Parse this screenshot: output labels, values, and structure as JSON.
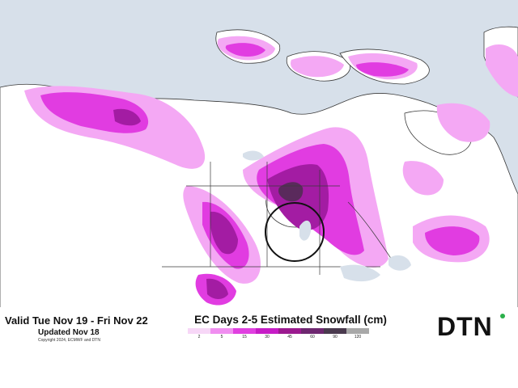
{
  "header": {
    "valid": "Valid Tue Nov 19 - Fri Nov 22",
    "updated": "Updated Nov 18",
    "copyright": "Copyright 2024, ECMWF and DTN",
    "title": "EC Days 2-5 Estimated Snowfall (cm)"
  },
  "legend": {
    "ticks": [
      "2",
      "5",
      "15",
      "30",
      "45",
      "60",
      "90",
      "120"
    ],
    "colors": [
      "#f7d7f7",
      "#f08ef0",
      "#e040e0",
      "#c61cc6",
      "#9b1a8f",
      "#6e2770",
      "#4a3a4e",
      "#a8a8a8"
    ]
  },
  "brand": {
    "logo": "DTN",
    "accent": "#2bb04a"
  },
  "map": {
    "ocean": "#d7e0ea",
    "land": "#ffffff",
    "border": "#3a3a3a",
    "snow_light": "#f4a8f4",
    "snow_mid": "#e13ce1",
    "snow_heavy": "#a31ca3",
    "snow_max": "#5a2a5c",
    "highlight_circle": "#111111"
  }
}
